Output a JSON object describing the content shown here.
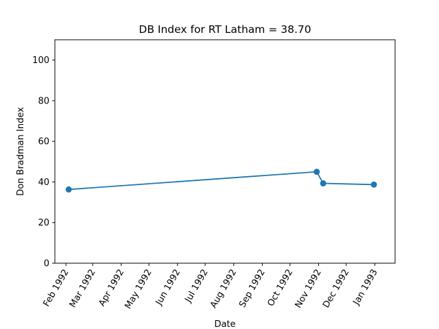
{
  "chart_data": {
    "type": "line",
    "title": "DB Index for RT Latham = 38.70",
    "xlabel": "Date",
    "ylabel": "Don Bradman Index",
    "ylim": [
      0,
      110
    ],
    "yticks": [
      0,
      20,
      40,
      60,
      80,
      100
    ],
    "xlim": [
      "1992-01-20",
      "1993-01-23"
    ],
    "xticks": [
      {
        "date": "1992-02-01",
        "label": "Feb 1992"
      },
      {
        "date": "1992-03-01",
        "label": "Mar 1992"
      },
      {
        "date": "1992-04-01",
        "label": "Apr 1992"
      },
      {
        "date": "1992-05-01",
        "label": "May 1992"
      },
      {
        "date": "1992-06-01",
        "label": "Jun 1992"
      },
      {
        "date": "1992-07-01",
        "label": "Jul 1992"
      },
      {
        "date": "1992-08-01",
        "label": "Aug 1992"
      },
      {
        "date": "1992-09-01",
        "label": "Sep 1992"
      },
      {
        "date": "1992-10-01",
        "label": "Oct 1992"
      },
      {
        "date": "1992-11-01",
        "label": "Nov 1992"
      },
      {
        "date": "1992-12-01",
        "label": "Dec 1992"
      },
      {
        "date": "1993-01-01",
        "label": "Jan 1993"
      }
    ],
    "series": [
      {
        "color": "#1f77b4",
        "points": [
          {
            "x": "1992-02-04",
            "y": 36.3
          },
          {
            "x": "1992-10-30",
            "y": 45.0
          },
          {
            "x": "1992-11-06",
            "y": 39.3
          },
          {
            "x": "1992-12-31",
            "y": 38.7
          }
        ]
      }
    ],
    "grid": false,
    "legend": "none"
  }
}
